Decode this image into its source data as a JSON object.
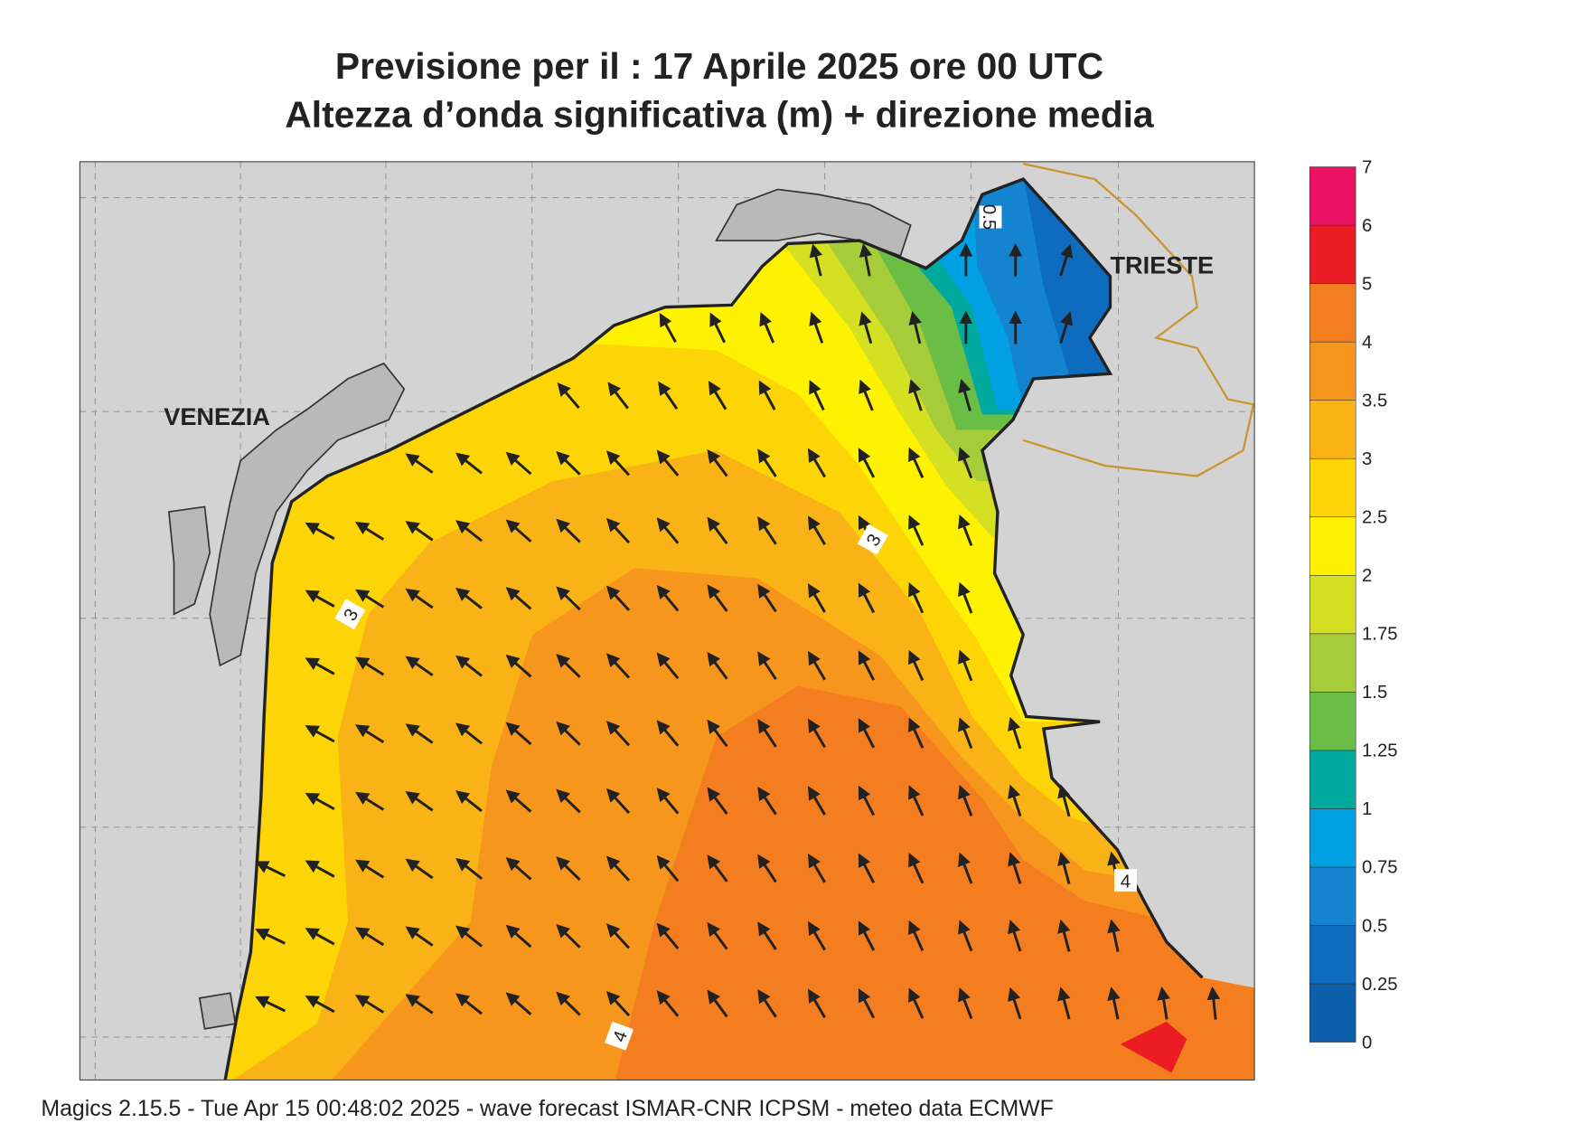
{
  "header": {
    "title": "Previsione per il  :  17   Aprile  2025   ore 00 UTC",
    "subtitle": "Altezza d’onda significativa (m) + direzione media"
  },
  "map": {
    "places": [
      "VENEZIA",
      "TRIESTE"
    ],
    "contour_labels": [
      "0.5",
      "3",
      "3",
      "4",
      "4"
    ]
  },
  "colorbar": {
    "levels": [
      0,
      0.25,
      0.5,
      0.75,
      1,
      1.25,
      1.5,
      1.75,
      2,
      2.5,
      3,
      3.5,
      4,
      5,
      6,
      7
    ],
    "colors": [
      "#0b5fab",
      "#0e6cbf",
      "#1483d0",
      "#00a0e3",
      "#00a99d",
      "#6abd45",
      "#a6cd39",
      "#d4e021",
      "#fff200",
      "#fdd405",
      "#f9b316",
      "#f6961d",
      "#f47d20",
      "#ec1c24",
      "#ec1164"
    ]
  },
  "footer": "Magics 2.15.5 - Tue Apr 15 00:48:02 2025 - wave forecast  ISMAR-CNR  ICPSM - meteo data   ECMWF"
}
